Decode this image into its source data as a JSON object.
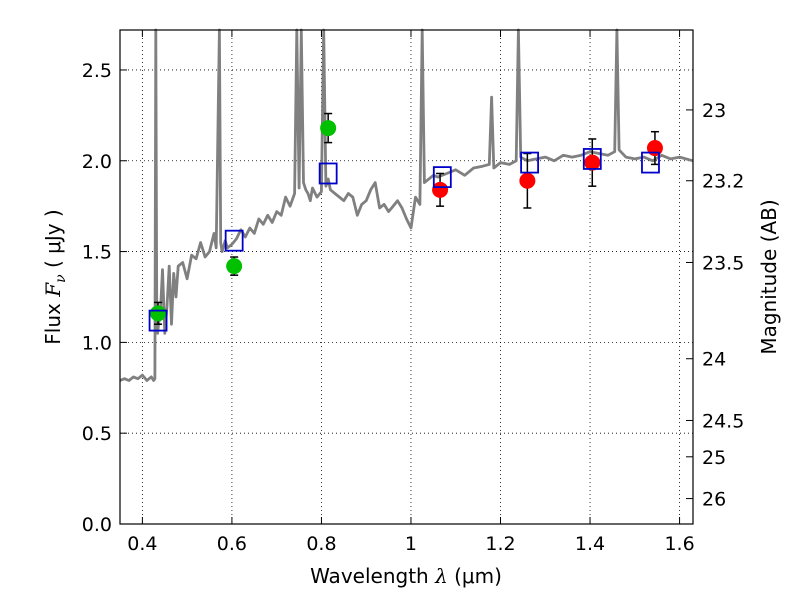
{
  "chart_data": {
    "type": "scatter",
    "xlabel": {
      "prefix": "Wavelength  ",
      "sym": "λ",
      "unit": " (μm)"
    },
    "ylabel": {
      "prefix": "Flux  ",
      "sym": "F",
      "sub": "ν",
      "unit": "  ( μJy )"
    },
    "y2label": "Magnitude (AB)",
    "xlim": [
      0.35,
      1.63
    ],
    "ylim": [
      0.0,
      2.72
    ],
    "grid": true,
    "x_ticks": [
      0.4,
      0.6,
      0.8,
      1.0,
      1.2,
      1.4,
      1.6
    ],
    "x_tick_labels": [
      "0.4",
      "0.6",
      "0.8",
      "1",
      "1.2",
      "1.4",
      "1.6"
    ],
    "y_ticks": [
      0.0,
      0.5,
      1.0,
      1.5,
      2.0,
      2.5
    ],
    "y_tick_labels": [
      "0.0",
      "0.5",
      "1.0",
      "1.5",
      "2.0",
      "2.5"
    ],
    "y2_ticks": [
      {
        "label": "23",
        "flux": 2.28
      },
      {
        "label": "23.2",
        "flux": 1.89
      },
      {
        "label": "23.5",
        "flux": 1.44
      },
      {
        "label": "24",
        "flux": 0.91
      },
      {
        "label": "24.5",
        "flux": 0.57
      },
      {
        "label": "25",
        "flux": 0.37
      },
      {
        "label": "26",
        "flux": 0.14
      }
    ],
    "colors": {
      "model": "#808080",
      "optical": "#00c000",
      "nir": "#ff0000",
      "synthetic": "#0000cc",
      "error": "#000000"
    },
    "series": [
      {
        "role": "model",
        "x": [
          0.35,
          0.36,
          0.37,
          0.38,
          0.39,
          0.4,
          0.41,
          0.415,
          0.42,
          0.425,
          0.428,
          0.43,
          0.432,
          0.434,
          0.436,
          0.44,
          0.445,
          0.45,
          0.455,
          0.46,
          0.465,
          0.47,
          0.475,
          0.48,
          0.49,
          0.5,
          0.51,
          0.52,
          0.53,
          0.54,
          0.55,
          0.56,
          0.565,
          0.572,
          0.575,
          0.578,
          0.585,
          0.59,
          0.6,
          0.61,
          0.62,
          0.63,
          0.64,
          0.65,
          0.66,
          0.67,
          0.68,
          0.69,
          0.7,
          0.71,
          0.72,
          0.73,
          0.74,
          0.745,
          0.75,
          0.755,
          0.76,
          0.765,
          0.77,
          0.775,
          0.78,
          0.79,
          0.8,
          0.805,
          0.81,
          0.815,
          0.82,
          0.83,
          0.84,
          0.85,
          0.86,
          0.87,
          0.88,
          0.89,
          0.9,
          0.91,
          0.92,
          0.93,
          0.94,
          0.95,
          0.96,
          0.97,
          0.98,
          0.99,
          1.0,
          1.01,
          1.02,
          1.025,
          1.03,
          1.04,
          1.05,
          1.06,
          1.08,
          1.1,
          1.12,
          1.14,
          1.16,
          1.175,
          1.18,
          1.185,
          1.2,
          1.22,
          1.235,
          1.24,
          1.245,
          1.26,
          1.28,
          1.3,
          1.32,
          1.34,
          1.36,
          1.38,
          1.4,
          1.42,
          1.44,
          1.455,
          1.46,
          1.465,
          1.48,
          1.5,
          1.52,
          1.54,
          1.56,
          1.58,
          1.6,
          1.63
        ],
        "y": [
          0.79,
          0.8,
          0.79,
          0.81,
          0.8,
          0.82,
          0.79,
          0.8,
          0.81,
          0.79,
          0.8,
          2.72,
          1.25,
          1.05,
          1.1,
          1.15,
          1.4,
          1.05,
          1.2,
          1.42,
          1.1,
          1.38,
          1.25,
          1.42,
          1.44,
          1.35,
          1.48,
          1.46,
          1.55,
          1.47,
          1.5,
          1.6,
          1.52,
          2.72,
          1.55,
          1.5,
          1.56,
          1.52,
          1.54,
          1.57,
          1.62,
          1.58,
          1.63,
          1.6,
          1.68,
          1.65,
          1.7,
          1.66,
          1.72,
          1.7,
          1.8,
          1.75,
          1.82,
          2.72,
          1.85,
          2.72,
          1.88,
          1.84,
          1.82,
          1.78,
          1.85,
          1.8,
          1.83,
          2.72,
          1.86,
          1.9,
          1.84,
          1.82,
          1.8,
          1.78,
          1.82,
          1.8,
          1.7,
          1.76,
          1.78,
          1.84,
          1.88,
          1.74,
          1.76,
          1.72,
          1.75,
          1.78,
          1.74,
          1.68,
          1.63,
          1.8,
          1.76,
          2.72,
          1.88,
          1.9,
          1.92,
          1.91,
          1.93,
          1.95,
          1.92,
          1.96,
          1.97,
          1.98,
          2.35,
          1.96,
          1.99,
          1.98,
          2.0,
          2.72,
          2.02,
          2.0,
          2.01,
          2.02,
          2.0,
          2.03,
          2.02,
          2.03,
          2.05,
          2.04,
          2.03,
          2.05,
          2.72,
          2.06,
          2.02,
          2.01,
          2.02,
          2.0,
          2.03,
          2.01,
          2.02,
          2.0
        ]
      },
      {
        "role": "optical",
        "x": [
          0.435,
          0.605,
          0.815
        ],
        "y": [
          1.16,
          1.42,
          2.18
        ],
        "err": [
          0.06,
          0.05,
          0.08
        ]
      },
      {
        "role": "nir",
        "x": [
          1.065,
          1.26,
          1.405,
          1.545
        ],
        "y": [
          1.84,
          1.89,
          1.99,
          2.07
        ],
        "err": [
          0.09,
          0.15,
          0.13,
          0.09
        ]
      },
      {
        "role": "synthetic",
        "x": [
          0.435,
          0.605,
          0.815,
          1.07,
          1.265,
          1.405,
          1.535
        ],
        "y": [
          1.12,
          1.56,
          1.93,
          1.91,
          1.99,
          2.01,
          1.99
        ]
      }
    ]
  }
}
